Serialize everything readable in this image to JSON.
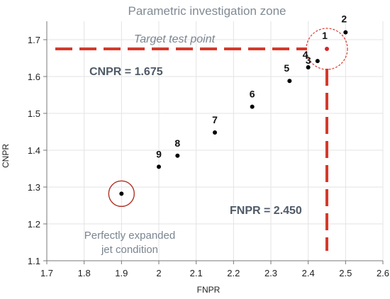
{
  "chart_data": {
    "type": "scatter",
    "title": "Parametric investigation zone",
    "xlabel": "FNPR",
    "ylabel": "CNPR",
    "xlim": [
      1.7,
      2.6
    ],
    "ylim": [
      1.1,
      1.75
    ],
    "xticks": [
      "1.7",
      "1.8",
      "1.9",
      "2",
      "2.1",
      "2.2",
      "2.3",
      "2.4",
      "2.5",
      "2.6"
    ],
    "yticks": [
      "1.1",
      "1.2",
      "1.3",
      "1.4",
      "1.5",
      "1.6",
      "1.7"
    ],
    "grid": true,
    "points": [
      {
        "label": "1",
        "x": 2.45,
        "y": 1.675,
        "color": "#d62728"
      },
      {
        "label": "2",
        "x": 2.5,
        "y": 1.72,
        "color": "#000000"
      },
      {
        "label": "3",
        "x": 2.425,
        "y": 1.642,
        "color": "#000000"
      },
      {
        "label": "4",
        "x": 2.4,
        "y": 1.625,
        "color": "#000000"
      },
      {
        "label": "5",
        "x": 2.35,
        "y": 1.588,
        "color": "#000000"
      },
      {
        "label": "6",
        "x": 2.25,
        "y": 1.518,
        "color": "#000000"
      },
      {
        "label": "7",
        "x": 2.15,
        "y": 1.448,
        "color": "#000000"
      },
      {
        "label": "8",
        "x": 2.05,
        "y": 1.385,
        "color": "#000000"
      },
      {
        "label": "9",
        "x": 2.0,
        "y": 1.355,
        "color": "#000000"
      },
      {
        "label": "",
        "x": 1.9,
        "y": 1.282,
        "color": "#000000"
      }
    ],
    "annotations": {
      "target_label": "Target test point",
      "cnpr_ref_label": "CNPR = 1.675",
      "cnpr_ref_value": 1.675,
      "fnpr_ref_label": "FNPR = 2.450",
      "fnpr_ref_value": 2.45,
      "perfect_label_line1": "Perfectly expanded",
      "perfect_label_line2": "jet condition",
      "ref_line_color": "#d6392b",
      "circle_color": "#b03025"
    }
  }
}
